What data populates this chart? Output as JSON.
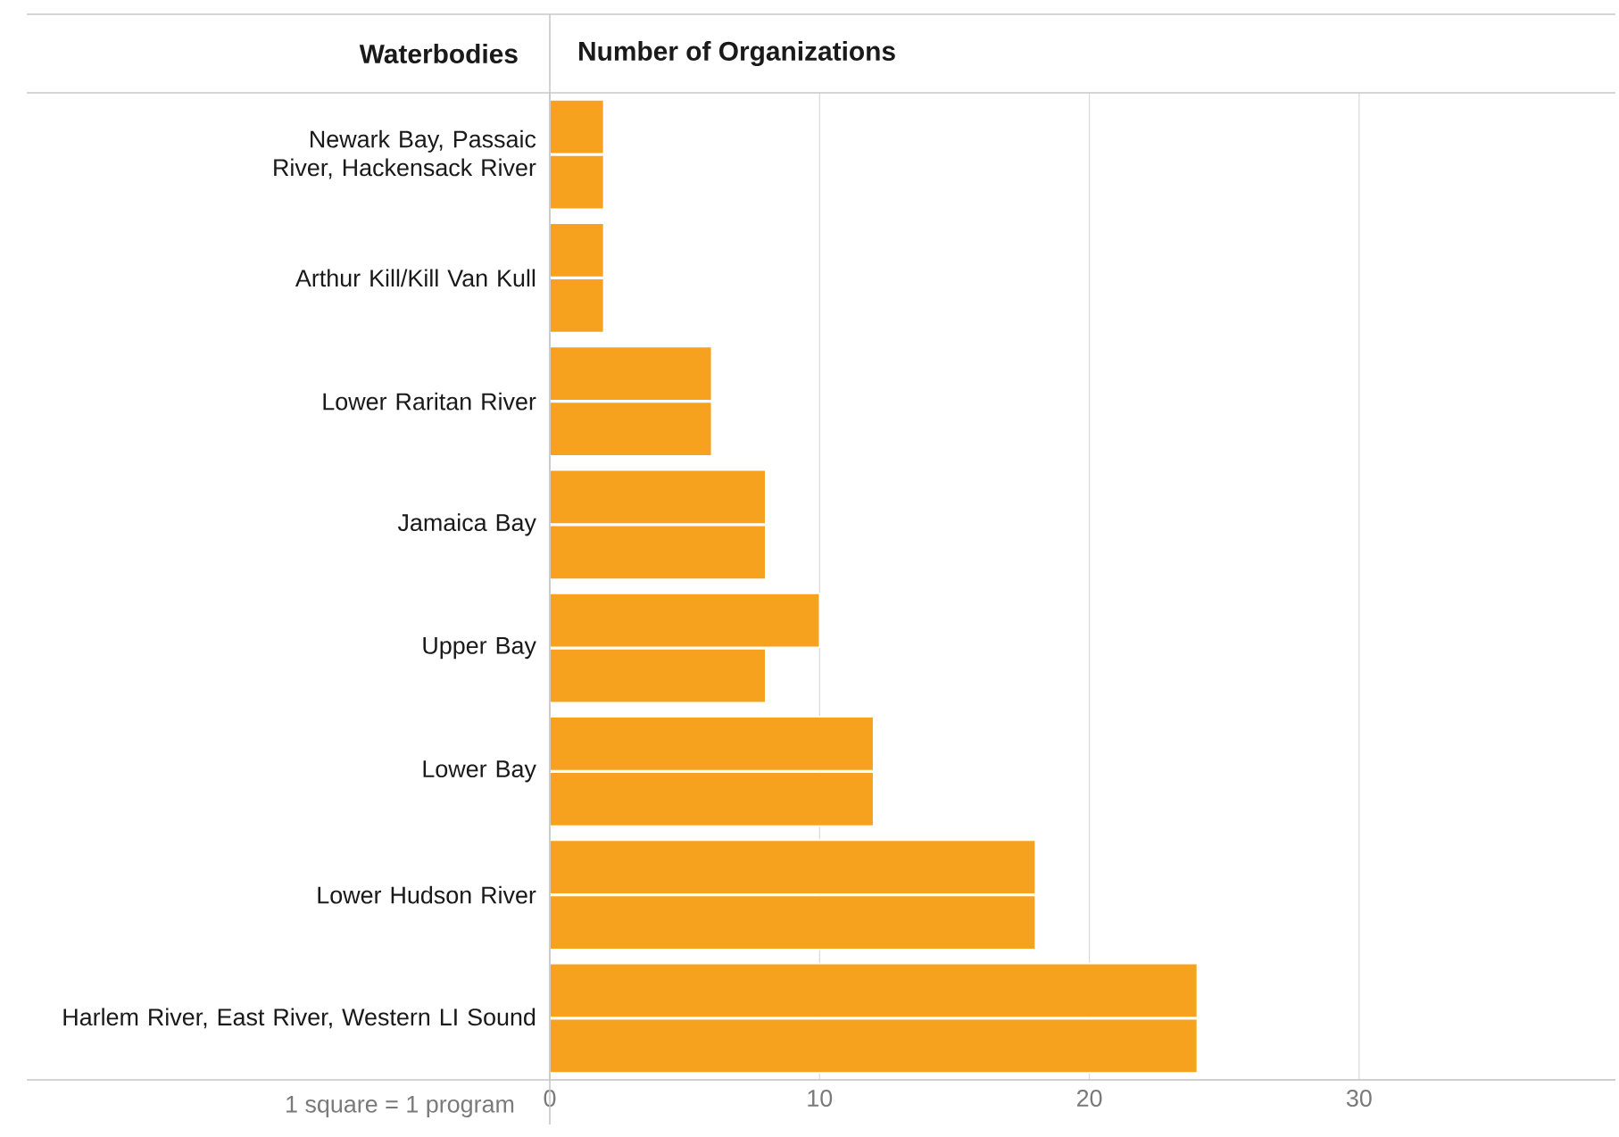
{
  "chart_data": {
    "type": "bar",
    "orientation": "horizontal",
    "xlabel": "Number of Organizations",
    "ylabel": "Waterbodies",
    "categories": [
      "Newark Bay, Passaic River, Hackensack River",
      "Arthur Kill/Kill Van Kull",
      "Lower Raritan River",
      "Jamaica Bay",
      "Upper Bay",
      "Lower Bay",
      "Lower Hudson River",
      "Harlem River, East River, Western LI Sound"
    ],
    "series": [
      {
        "color": "#f7a21e",
        "values": [
          2,
          2,
          6,
          8,
          10,
          12,
          18,
          24
        ]
      },
      {
        "color": "#f7a21e",
        "values": [
          2,
          2,
          6,
          8,
          8,
          12,
          18,
          24
        ]
      }
    ],
    "xlim": [
      0,
      39.5
    ],
    "xticks": [
      0,
      10,
      20,
      30
    ],
    "grid": "x",
    "annotations": [
      "1 square = 1 program"
    ]
  }
}
